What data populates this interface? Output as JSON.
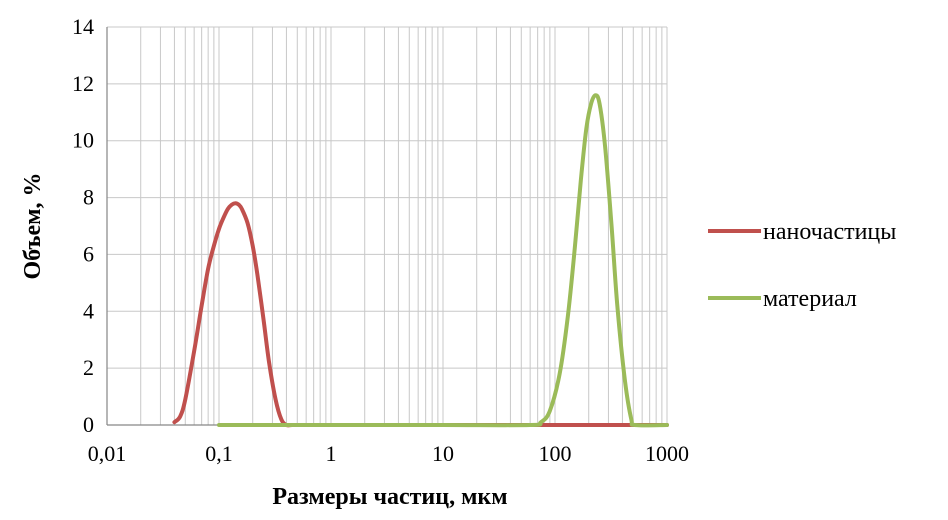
{
  "chart_data": {
    "type": "line",
    "xlabel": "Размеры частиц, мкм",
    "ylabel": "Объем,   %",
    "xscale": "log",
    "xlim": [
      0.01,
      1000
    ],
    "ylim": [
      0,
      14
    ],
    "x_ticks": [
      0.01,
      0.1,
      1,
      10,
      100,
      1000
    ],
    "x_tick_labels": [
      "0,01",
      "0,1",
      "1",
      "10",
      "100",
      "1000"
    ],
    "y_ticks": [
      0,
      2,
      4,
      6,
      8,
      10,
      12,
      14
    ],
    "y_tick_labels": [
      "0",
      "2",
      "4",
      "6",
      "8",
      "10",
      "12",
      "14"
    ],
    "grid": true,
    "legend_position": "right",
    "series": [
      {
        "name": "наночастицы",
        "color": "#c0504d",
        "x": [
          0.04,
          0.045,
          0.05,
          0.06,
          0.07,
          0.08,
          0.09,
          0.1,
          0.11,
          0.12,
          0.13,
          0.14,
          0.15,
          0.16,
          0.18,
          0.2,
          0.22,
          0.25,
          0.28,
          0.32,
          0.36,
          0.4,
          0.45,
          0.5,
          1,
          10,
          100,
          1000
        ],
        "y": [
          0.1,
          0.3,
          0.9,
          2.6,
          4.2,
          5.5,
          6.3,
          6.9,
          7.3,
          7.6,
          7.75,
          7.8,
          7.75,
          7.6,
          7.1,
          6.3,
          5.3,
          3.7,
          2.2,
          0.9,
          0.2,
          0.0,
          0.0,
          0.0,
          0.0,
          0.0,
          0.0,
          0.0
        ]
      },
      {
        "name": "материал",
        "color": "#9bbb59",
        "x": [
          0.1,
          1,
          10,
          60,
          75,
          90,
          110,
          130,
          150,
          170,
          190,
          210,
          230,
          250,
          280,
          320,
          360,
          420,
          480,
          520,
          1000
        ],
        "y": [
          0.0,
          0.0,
          0.0,
          0.0,
          0.1,
          0.5,
          1.8,
          3.8,
          6.2,
          8.6,
          10.4,
          11.3,
          11.6,
          11.3,
          9.8,
          7.0,
          4.2,
          1.6,
          0.2,
          0.0,
          0.0
        ]
      }
    ]
  }
}
